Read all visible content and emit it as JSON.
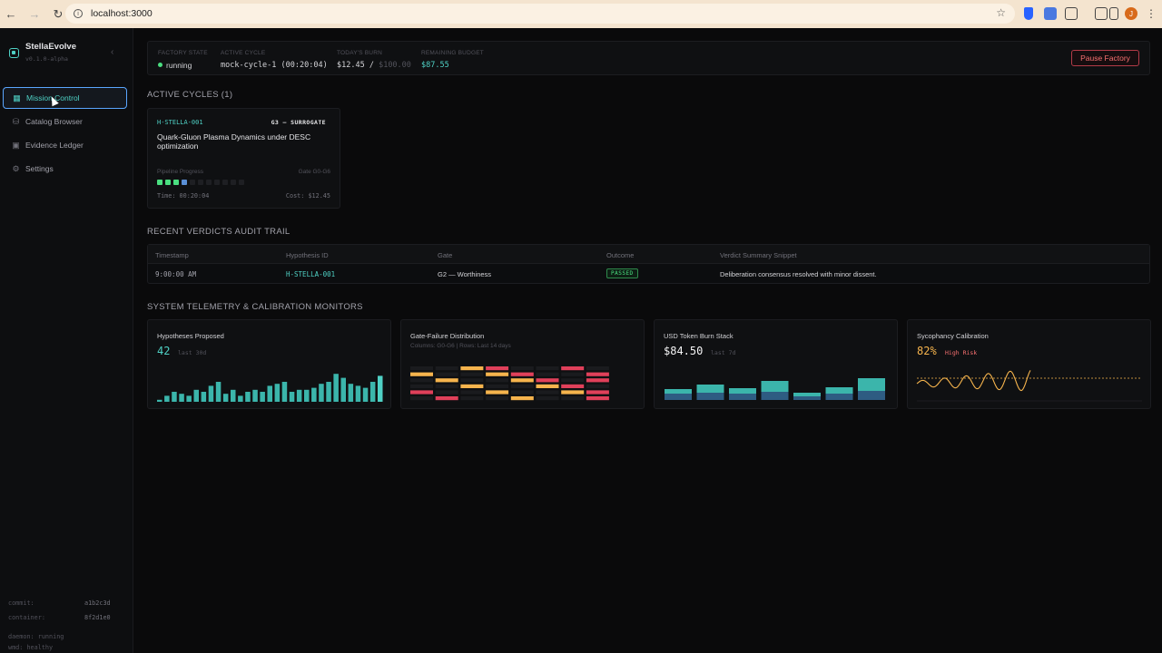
{
  "browser": {
    "url": "localhost:3000",
    "avatar_letter": "J"
  },
  "sidebar": {
    "brand": "StellaEvolve",
    "version": "v0.1.0-alpha",
    "items": [
      {
        "label": "Mission Control",
        "icon": "grid-icon",
        "active": true
      },
      {
        "label": "Catalog Browser",
        "icon": "database-icon",
        "active": false
      },
      {
        "label": "Evidence Ledger",
        "icon": "book-icon",
        "active": false
      },
      {
        "label": "Settings",
        "icon": "gear-icon",
        "active": false
      }
    ],
    "footer": {
      "commit_label": "commit:",
      "commit_value": "a1b2c3d",
      "container_label": "container:",
      "container_value": "8f2d1e0",
      "daemon": "daemon: running",
      "wmd": "wmd: healthy"
    }
  },
  "status": {
    "factory_state_label": "FACTORY STATE",
    "factory_state": "running",
    "active_cycle_label": "ACTIVE CYCLE",
    "active_cycle": "mock-cycle-1 (00:20:04)",
    "burn_label": "TODAY'S BURN",
    "burn_value": "$12.45 /",
    "burn_cap": "$100.00",
    "budget_label": "REMAINING BUDGET",
    "budget_value": "$87.55",
    "pause_button": "Pause Factory"
  },
  "active_cycles": {
    "title": "ACTIVE CYCLES (1)",
    "card": {
      "id": "H-STELLA-001",
      "gate": "G3 — SURROGATE",
      "title": "Quark-Gluon Plasma Dynamics under DESC optimization",
      "pipeline_label": "Pipeline Progress",
      "gate_range": "Gate G0-G6",
      "pips": [
        "done",
        "done",
        "done",
        "current",
        "pending",
        "pending",
        "pending",
        "pending",
        "pending",
        "pending",
        "pending"
      ],
      "time": "Time: 00:20:04",
      "cost": "Cost: $12.45"
    }
  },
  "verdicts": {
    "title": "RECENT VERDICTS AUDIT TRAIL",
    "columns": [
      "Timestamp",
      "Hypothesis ID",
      "Gate",
      "Outcome",
      "Verdict Summary Snippet"
    ],
    "rows": [
      {
        "timestamp": "9:00:00 AM",
        "hypothesis": "H-STELLA-001",
        "gate": "G2 — Worthiness",
        "outcome": "PASSED",
        "summary": "Deliberation consensus resolved with minor dissent."
      }
    ]
  },
  "telemetry": {
    "title": "SYSTEM TELEMETRY & CALIBRATION MONITORS",
    "hypotheses": {
      "title": "Hypotheses Proposed",
      "value": "42",
      "sub": "last 30d"
    },
    "gate_failure": {
      "title": "Gate-Failure Distribution",
      "sub": "Columns: G0-G6 | Rows: Last 14 days"
    },
    "token_burn": {
      "title": "USD Token Burn Stack",
      "value": "$84.50",
      "sub": "last 7d"
    },
    "sycophancy": {
      "title": "Sycophancy Calibration",
      "value": "82%",
      "risk": "High Risk"
    }
  },
  "colors": {
    "accent": "#4fd1c5",
    "danger": "#f87171",
    "warning": "#f6b44d",
    "success": "#4ade80"
  }
}
